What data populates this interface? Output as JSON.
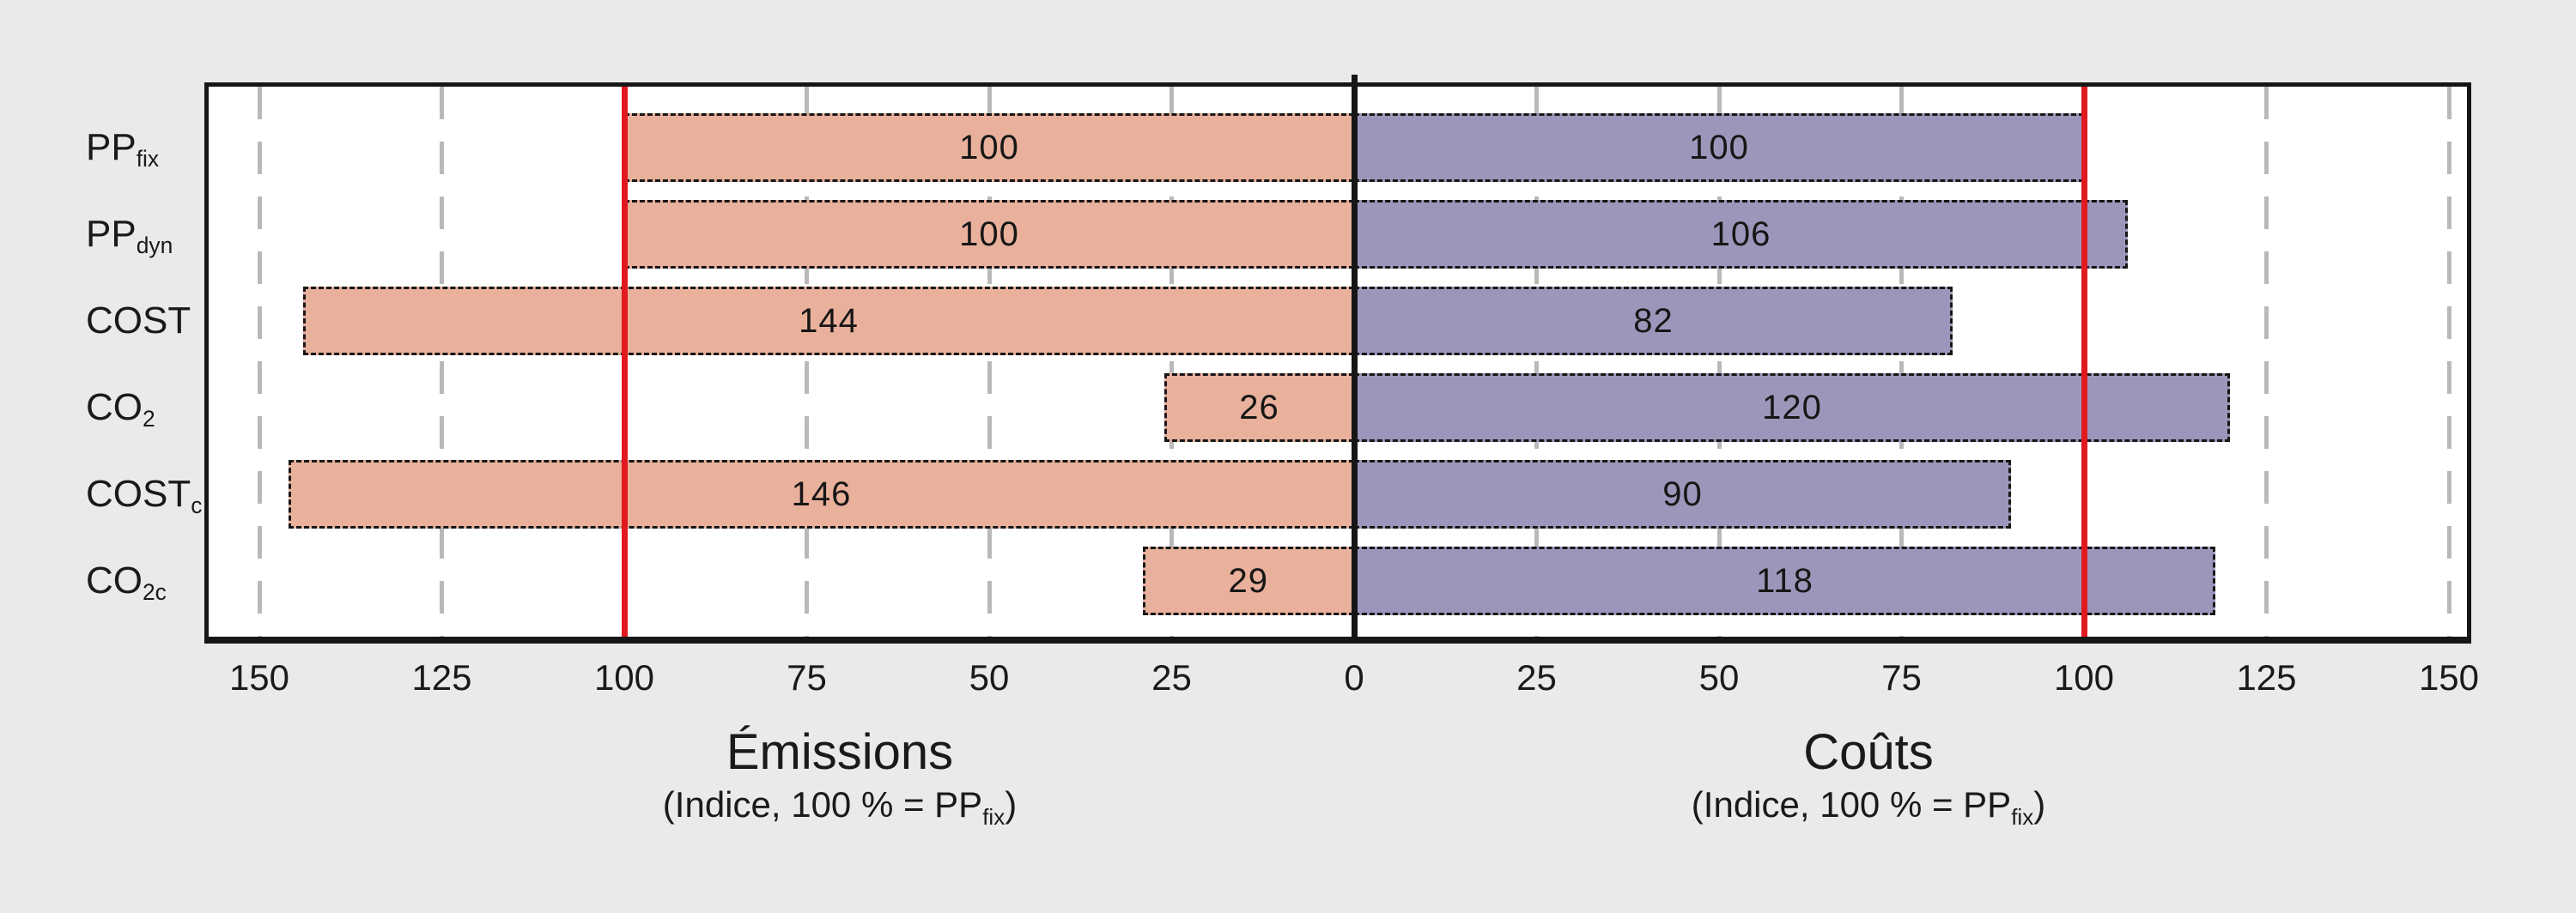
{
  "colors": {
    "background": "#ebeaea",
    "plot_background": "#ffffff",
    "ink": "#161616",
    "gridline": "#b9b9b9",
    "emissions_bar": "#e9b09c",
    "costs_bar": "#9c97ba",
    "reference_line_red": "#e11a20"
  },
  "chart_data": {
    "type": "bar",
    "variant": "diverging-horizontal-butterfly",
    "categories": [
      {
        "base": "PP",
        "sub": "fix"
      },
      {
        "base": "PP",
        "sub": "dyn"
      },
      {
        "base": "COST",
        "sub": ""
      },
      {
        "base": "CO",
        "sub": "2"
      },
      {
        "base": "COST",
        "sub": "c"
      },
      {
        "base": "CO",
        "sub": "2c"
      }
    ],
    "series": [
      {
        "name": "Émissions",
        "side": "left",
        "color": "#e9b09c",
        "values": [
          100,
          100,
          144,
          26,
          146,
          29
        ]
      },
      {
        "name": "Coûts",
        "side": "right",
        "color": "#9c97ba",
        "values": [
          100,
          106,
          82,
          120,
          90,
          118
        ]
      }
    ],
    "axis": {
      "tick_values": [
        -150,
        -125,
        -100,
        -75,
        -50,
        -25,
        0,
        25,
        50,
        75,
        100,
        125,
        150
      ],
      "tick_labels": [
        "150",
        "125",
        "100",
        "75",
        "50",
        "25",
        "0",
        "25",
        "50",
        "75",
        "100",
        "125",
        "150"
      ],
      "gridline_values": [
        -150,
        -125,
        -75,
        -50,
        -25,
        25,
        50,
        75,
        125,
        150
      ],
      "reference_line_values": [
        -100,
        100
      ],
      "xlim": [
        -157,
        154
      ],
      "grid": true,
      "legend": false
    },
    "left_axis": {
      "title": "Émissions",
      "subtitle_pre": "(Indice, 100 % = PP",
      "subtitle_sub": "fix",
      "subtitle_post": ")"
    },
    "right_axis": {
      "title": "Coûts",
      "subtitle_pre": "(Indice, 100 % = PP",
      "subtitle_sub": "fix",
      "subtitle_post": ")"
    }
  }
}
